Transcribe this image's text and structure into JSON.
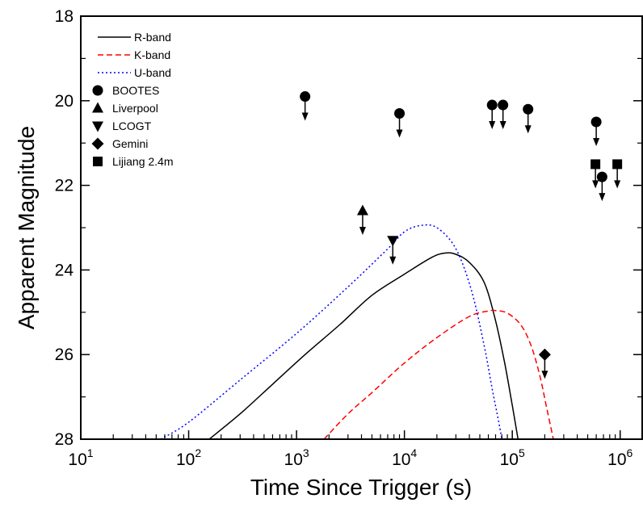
{
  "chart_data": {
    "type": "scatter",
    "title": "",
    "xlabel": "Time Since Trigger (s)",
    "ylabel": "Apparent Magnitude",
    "xscale": "log",
    "xlim": [
      10,
      1600000
    ],
    "ylim": [
      28,
      18
    ],
    "y_inverted": true,
    "grid": false,
    "legend_position": "top-left",
    "x_ticks": [
      {
        "value": 10,
        "base": "10",
        "exp": "1"
      },
      {
        "value": 100,
        "base": "10",
        "exp": "2"
      },
      {
        "value": 1000,
        "base": "10",
        "exp": "3"
      },
      {
        "value": 10000,
        "base": "10",
        "exp": "4"
      },
      {
        "value": 100000,
        "base": "10",
        "exp": "5"
      },
      {
        "value": 1000000,
        "base": "10",
        "exp": "6"
      }
    ],
    "y_ticks": [
      {
        "value": 18,
        "label": "18"
      },
      {
        "value": 20,
        "label": "20"
      },
      {
        "value": 22,
        "label": "22"
      },
      {
        "value": 24,
        "label": "24"
      },
      {
        "value": 26,
        "label": "26"
      },
      {
        "value": 28,
        "label": "28"
      }
    ],
    "y_minor_ticks": [
      19,
      21,
      23,
      25,
      27
    ],
    "curves": [
      {
        "name": "R-band",
        "color": "#000000",
        "dash": "solid",
        "x": [
          155,
          300,
          600,
          1200,
          2500,
          5000,
          10000,
          18000,
          24000,
          30000,
          40000,
          55000,
          70000,
          85000,
          100000,
          113000
        ],
        "y": [
          28.0,
          27.4,
          26.7,
          26.0,
          25.3,
          24.6,
          24.1,
          23.7,
          23.6,
          23.63,
          23.82,
          24.3,
          25.2,
          26.2,
          27.2,
          28.0
        ]
      },
      {
        "name": "K-band",
        "color": "#ff0000",
        "dash": "dashed",
        "x": [
          1800,
          3000,
          5000,
          10000,
          20000,
          40000,
          60000,
          70000,
          90000,
          120000,
          150000,
          180000,
          210000,
          240000
        ],
        "y": [
          28.0,
          27.4,
          26.9,
          26.2,
          25.6,
          25.1,
          24.97,
          24.96,
          25.02,
          25.3,
          25.8,
          26.5,
          27.3,
          28.0
        ]
      },
      {
        "name": "U-band",
        "color": "#0000ff",
        "dash": "dotted",
        "x": [
          55,
          100,
          300,
          1000,
          3000,
          7000,
          10000,
          14000,
          20000,
          30000,
          42000,
          55000,
          65000,
          75000,
          80000
        ],
        "y": [
          28.0,
          27.6,
          26.6,
          25.5,
          24.4,
          23.5,
          23.1,
          22.95,
          23.0,
          23.5,
          24.5,
          25.8,
          26.8,
          27.6,
          28.0
        ]
      }
    ],
    "markers": [
      {
        "name": "BOOTES",
        "shape": "circle",
        "points": [
          {
            "x": 1200,
            "y": 19.9
          },
          {
            "x": 9000,
            "y": 20.3
          },
          {
            "x": 65000,
            "y": 20.1
          },
          {
            "x": 82000,
            "y": 20.1
          },
          {
            "x": 140000,
            "y": 20.2
          },
          {
            "x": 600000,
            "y": 20.5
          },
          {
            "x": 680000,
            "y": 21.8
          }
        ]
      },
      {
        "name": "Liverpool",
        "shape": "triangle-up",
        "points": [
          {
            "x": 4100,
            "y": 22.6
          }
        ]
      },
      {
        "name": "LCOGT",
        "shape": "triangle-down",
        "points": [
          {
            "x": 7800,
            "y": 23.3
          }
        ]
      },
      {
        "name": "Gemini",
        "shape": "diamond",
        "points": [
          {
            "x": 200000,
            "y": 26.0
          }
        ]
      },
      {
        "name": "Lijiang 2.4m",
        "shape": "square",
        "points": [
          {
            "x": 590000,
            "y": 21.5
          },
          {
            "x": 940000,
            "y": 21.5
          }
        ]
      }
    ],
    "upper_limit_arrows": true
  }
}
